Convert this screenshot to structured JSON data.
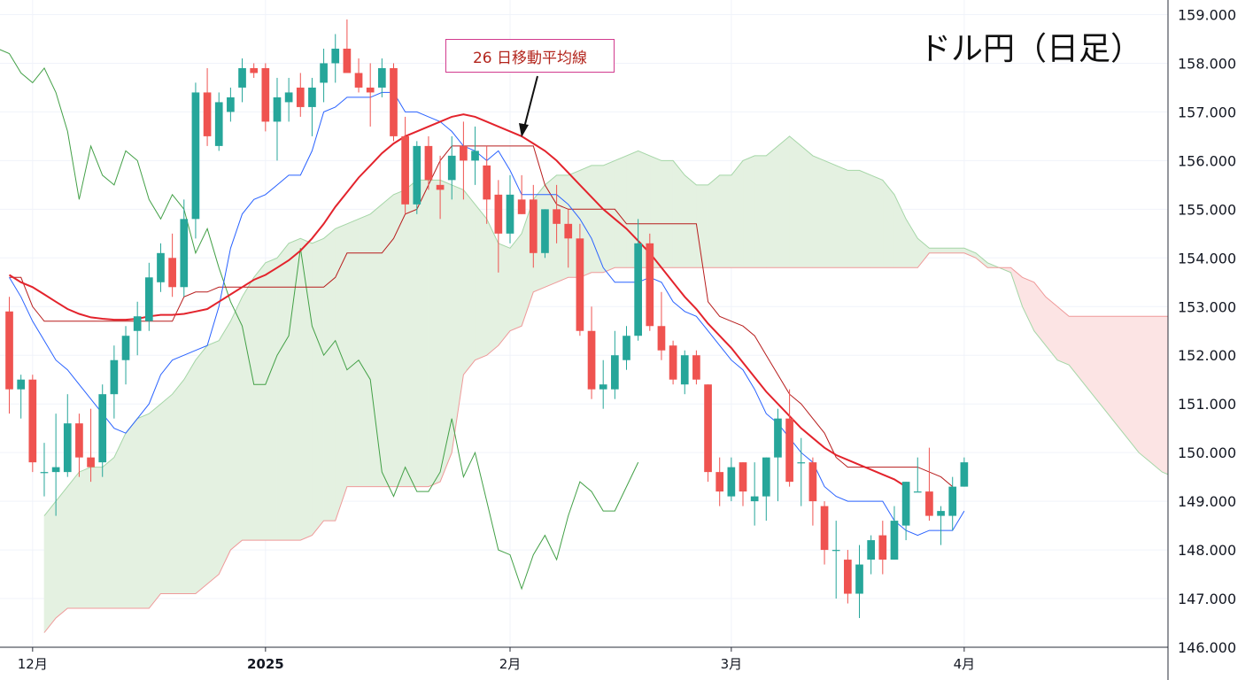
{
  "chart_data": {
    "type": "candlestick",
    "title": "ドル円（日足）",
    "annotation": "26 日移動平均線",
    "y_axis": {
      "ticks": [
        "146.000",
        "147.000",
        "148.000",
        "149.000",
        "150.000",
        "151.000",
        "152.000",
        "153.000",
        "154.000",
        "155.000",
        "156.000",
        "157.000",
        "158.000",
        "159.000"
      ],
      "ylim": [
        146,
        159.3
      ]
    },
    "x_axis": {
      "ticks": [
        {
          "label": "12月",
          "day": 2,
          "bold": false
        },
        {
          "label": "2025",
          "day": 22,
          "bold": true
        },
        {
          "label": "2月",
          "day": 43,
          "bold": false
        },
        {
          "label": "3月",
          "day": 62,
          "bold": false
        },
        {
          "label": "4月",
          "day": 82,
          "bold": false
        }
      ],
      "xlim": [
        -0.8,
        99.5
      ]
    },
    "colors": {
      "up": "#26a69a",
      "down": "#ef5350",
      "ma26": "#e3232c",
      "tenkan": "#2962ff",
      "kijun": "#b71c1c",
      "chikou": "#43a047",
      "kumo_bull": "#e4f1e1",
      "kumo_bear": "#fce4e4",
      "span_a": "#a5d6a7",
      "span_b": "#ef9a9a"
    },
    "candles": [
      [
        152.9,
        153.2,
        150.8,
        151.3
      ],
      [
        151.3,
        151.6,
        150.7,
        151.5
      ],
      [
        151.5,
        151.6,
        149.6,
        149.8
      ],
      [
        149.6,
        150.2,
        149.1,
        149.6
      ],
      [
        149.6,
        150.8,
        148.7,
        149.7
      ],
      [
        149.6,
        151.2,
        149.5,
        150.6
      ],
      [
        150.6,
        150.8,
        149.5,
        149.9
      ],
      [
        149.9,
        150.9,
        149.4,
        149.7
      ],
      [
        149.8,
        151.4,
        149.5,
        151.2
      ],
      [
        151.2,
        152.2,
        150.7,
        151.9
      ],
      [
        151.9,
        152.6,
        151.4,
        152.4
      ],
      [
        152.5,
        153.1,
        152.0,
        152.8
      ],
      [
        152.7,
        153.9,
        152.5,
        153.6
      ],
      [
        153.5,
        154.3,
        153.3,
        154.1
      ],
      [
        154.0,
        154.5,
        153.2,
        153.4
      ],
      [
        153.4,
        155.2,
        153.2,
        154.8
      ],
      [
        154.8,
        157.6,
        154.4,
        157.4
      ],
      [
        157.4,
        157.9,
        156.3,
        156.5
      ],
      [
        156.3,
        157.4,
        156.2,
        157.2
      ],
      [
        157.0,
        157.5,
        156.8,
        157.3
      ],
      [
        157.5,
        158.1,
        157.2,
        157.9
      ],
      [
        157.9,
        158.0,
        157.7,
        157.8
      ],
      [
        157.9,
        158.0,
        156.6,
        156.8
      ],
      [
        156.8,
        157.7,
        156.0,
        157.3
      ],
      [
        157.2,
        157.7,
        156.8,
        157.4
      ],
      [
        157.5,
        157.8,
        156.9,
        157.1
      ],
      [
        157.1,
        157.7,
        156.5,
        157.5
      ],
      [
        157.6,
        158.3,
        157.2,
        158.0
      ],
      [
        158.0,
        158.6,
        157.6,
        158.3
      ],
      [
        158.3,
        158.9,
        157.9,
        157.8
      ],
      [
        157.8,
        158.1,
        157.4,
        157.5
      ],
      [
        157.5,
        158.0,
        156.7,
        157.4
      ],
      [
        157.5,
        158.1,
        157.3,
        157.9
      ],
      [
        157.9,
        158.0,
        156.4,
        156.5
      ],
      [
        156.5,
        156.9,
        154.9,
        155.1
      ],
      [
        155.1,
        156.4,
        154.9,
        156.3
      ],
      [
        156.3,
        156.5,
        155.4,
        155.6
      ],
      [
        155.5,
        156.1,
        154.8,
        155.4
      ],
      [
        155.6,
        156.5,
        155.2,
        156.1
      ],
      [
        156.3,
        156.8,
        155.2,
        156.0
      ],
      [
        156.0,
        156.7,
        155.5,
        156.2
      ],
      [
        155.9,
        156.3,
        154.7,
        155.2
      ],
      [
        155.3,
        155.6,
        153.7,
        154.5
      ],
      [
        154.5,
        155.7,
        154.3,
        155.3
      ],
      [
        155.2,
        155.7,
        154.9,
        154.9
      ],
      [
        155.2,
        155.5,
        153.8,
        154.1
      ],
      [
        154.1,
        155.0,
        154.0,
        155.0
      ],
      [
        155.0,
        155.5,
        154.3,
        154.7
      ],
      [
        154.7,
        155.0,
        153.8,
        154.4
      ],
      [
        154.4,
        154.7,
        152.4,
        152.5
      ],
      [
        152.5,
        153.0,
        151.1,
        151.3
      ],
      [
        151.3,
        151.9,
        150.9,
        151.4
      ],
      [
        151.3,
        152.5,
        151.1,
        152.0
      ],
      [
        151.9,
        152.6,
        151.7,
        152.4
      ],
      [
        152.4,
        154.8,
        152.3,
        154.3
      ],
      [
        154.3,
        154.5,
        152.5,
        152.6
      ],
      [
        152.6,
        153.3,
        151.9,
        152.1
      ],
      [
        152.2,
        152.3,
        151.4,
        151.5
      ],
      [
        151.4,
        152.1,
        151.2,
        152.0
      ],
      [
        152.0,
        152.1,
        151.4,
        151.5
      ],
      [
        151.4,
        151.4,
        149.4,
        149.6
      ],
      [
        149.6,
        149.9,
        148.9,
        149.2
      ],
      [
        149.1,
        149.9,
        149.0,
        149.7
      ],
      [
        149.8,
        149.8,
        148.9,
        149.2
      ],
      [
        149.0,
        149.8,
        148.5,
        149.1
      ],
      [
        149.1,
        149.9,
        148.6,
        149.9
      ],
      [
        149.9,
        150.9,
        149.0,
        150.7
      ],
      [
        150.7,
        151.3,
        149.3,
        149.4
      ],
      [
        149.8,
        150.3,
        148.9,
        149.8
      ],
      [
        149.8,
        149.9,
        148.5,
        149.0
      ],
      [
        148.9,
        149.0,
        147.7,
        148.0
      ],
      [
        148.0,
        148.6,
        147.0,
        148.0
      ],
      [
        147.8,
        148.0,
        146.9,
        147.1
      ],
      [
        147.1,
        148.1,
        146.6,
        147.7
      ],
      [
        147.8,
        148.3,
        147.5,
        148.2
      ],
      [
        148.3,
        148.6,
        147.5,
        147.8
      ],
      [
        147.8,
        148.9,
        147.8,
        148.6
      ],
      [
        148.5,
        149.4,
        148.2,
        149.4
      ],
      [
        149.2,
        149.9,
        149.2,
        149.2
      ],
      [
        149.2,
        150.1,
        148.6,
        148.7
      ],
      [
        148.7,
        148.9,
        148.1,
        148.8
      ],
      [
        148.7,
        149.5,
        148.4,
        149.3
      ],
      [
        149.3,
        149.9,
        149.3,
        149.8
      ]
    ],
    "ma26": [
      153.65,
      153.5,
      153.4,
      153.25,
      153.1,
      152.95,
      152.85,
      152.78,
      152.75,
      152.73,
      152.73,
      152.75,
      152.8,
      152.83,
      152.83,
      152.85,
      152.9,
      152.95,
      153.1,
      153.25,
      153.4,
      153.55,
      153.65,
      153.8,
      153.95,
      154.15,
      154.4,
      154.7,
      155.05,
      155.35,
      155.65,
      155.9,
      156.15,
      156.35,
      156.5,
      156.6,
      156.7,
      156.8,
      156.9,
      156.95,
      156.9,
      156.8,
      156.7,
      156.6,
      156.5,
      156.35,
      156.2,
      156.0,
      155.75,
      155.5,
      155.25,
      155.0,
      154.8,
      154.6,
      154.35,
      154.1,
      153.8,
      153.5,
      153.2,
      152.95,
      152.65,
      152.4,
      152.15,
      151.85,
      151.55,
      151.25,
      151.0,
      150.75,
      150.5,
      150.3,
      150.1,
      149.95,
      149.85,
      149.75,
      149.65,
      149.55,
      149.45,
      149.3
    ],
    "tenkan": [
      153.6,
      153.2,
      152.7,
      152.3,
      151.9,
      151.7,
      151.4,
      151.1,
      150.8,
      150.5,
      150.4,
      150.7,
      151.0,
      151.6,
      151.9,
      152.0,
      152.1,
      152.2,
      153.0,
      154.2,
      154.9,
      155.2,
      155.3,
      155.5,
      155.7,
      155.7,
      156.2,
      157.0,
      157.1,
      157.3,
      157.3,
      157.3,
      157.4,
      157.4,
      157.0,
      157.0,
      156.9,
      156.8,
      156.6,
      156.3,
      156.2,
      156.0,
      156.2,
      155.8,
      155.3,
      155.3,
      155.3,
      155.3,
      155.1,
      154.8,
      154.4,
      153.8,
      153.5,
      153.5,
      153.5,
      153.6,
      153.5,
      153.1,
      152.9,
      152.8,
      152.5,
      152.2,
      151.9,
      151.7,
      151.3,
      150.8,
      150.6,
      150.3,
      150.0,
      149.8,
      149.3,
      149.1,
      149.0,
      149.0,
      149.0,
      149.0,
      148.6,
      148.4,
      148.3,
      148.4,
      148.4,
      148.4,
      148.8
    ],
    "kijun": [
      153.6,
      153.6,
      153.0,
      152.7,
      152.7,
      152.7,
      152.7,
      152.7,
      152.7,
      152.7,
      152.7,
      152.7,
      152.7,
      152.7,
      152.7,
      153.2,
      153.3,
      153.3,
      153.4,
      153.4,
      153.4,
      153.4,
      153.4,
      153.4,
      153.4,
      153.4,
      153.4,
      153.4,
      153.6,
      154.1,
      154.1,
      154.1,
      154.1,
      154.4,
      154.9,
      155.0,
      155.5,
      156.0,
      156.3,
      156.3,
      156.3,
      156.3,
      156.3,
      156.3,
      156.3,
      156.3,
      155.5,
      155.1,
      155.0,
      155.0,
      155.0,
      155.0,
      155.0,
      154.7,
      154.7,
      154.7,
      154.7,
      154.7,
      154.7,
      154.7,
      153.1,
      152.8,
      152.7,
      152.6,
      152.4,
      152.0,
      151.6,
      151.2,
      151.0,
      150.7,
      150.4,
      149.9,
      149.7,
      149.7,
      149.7,
      149.7,
      149.7,
      149.7,
      149.7,
      149.6,
      149.5,
      149.3
    ],
    "chikou": [
      157.9,
      158.3,
      158.2,
      157.8,
      157.6,
      157.9,
      157.4,
      156.6,
      155.2,
      156.3,
      155.7,
      155.5,
      156.2,
      156.0,
      155.2,
      154.8,
      155.3,
      155.0,
      154.1,
      154.6,
      153.8,
      153.1,
      152.6,
      151.4,
      151.4,
      152.0,
      152.4,
      154.2,
      152.6,
      152.0,
      152.3,
      151.7,
      151.9,
      151.5,
      149.6,
      149.1,
      149.7,
      149.2,
      149.2,
      149.6,
      150.7,
      149.5,
      150.0,
      149.0,
      148.0,
      147.9,
      147.2,
      147.9,
      148.3,
      147.8,
      148.7,
      149.4,
      149.2,
      148.8,
      148.8,
      149.3,
      149.8
    ],
    "span_a": [
      148.7,
      149.0,
      149.3,
      149.6,
      149.7,
      149.7,
      149.9,
      150.4,
      150.7,
      150.8,
      151.0,
      151.2,
      151.5,
      151.9,
      152.2,
      152.3,
      152.7,
      153.2,
      153.6,
      153.9,
      154.0,
      154.3,
      154.4,
      154.3,
      154.4,
      154.6,
      154.7,
      154.8,
      154.9,
      155.1,
      155.3,
      155.4,
      155.6,
      155.6,
      155.6,
      155.5,
      155.4,
      155.1,
      154.8,
      154.3,
      154.2,
      154.5,
      155.2,
      155.5,
      155.7,
      155.7,
      155.8,
      155.9,
      155.9,
      156.0,
      156.1,
      156.2,
      156.1,
      156.0,
      156.0,
      155.7,
      155.5,
      155.5,
      155.7,
      155.7,
      156.0,
      156.1,
      156.1,
      156.3,
      156.5,
      156.3,
      156.1,
      156.0,
      155.9,
      155.8,
      155.8,
      155.7,
      155.6,
      155.3,
      154.8,
      154.4,
      154.2,
      154.2,
      154.2,
      154.2,
      154.1,
      153.9,
      153.8,
      153.7,
      153.0,
      152.5,
      152.2,
      151.9,
      151.8,
      151.5,
      151.2,
      150.9,
      150.6,
      150.3,
      150.0,
      149.8,
      149.6,
      149.5,
      149.5,
      149.4,
      149.2
    ],
    "span_b": [
      146.3,
      146.6,
      146.8,
      146.8,
      146.8,
      146.8,
      146.8,
      146.8,
      146.8,
      146.8,
      147.1,
      147.1,
      147.1,
      147.1,
      147.3,
      147.5,
      148.0,
      148.2,
      148.2,
      148.2,
      148.2,
      148.2,
      148.2,
      148.3,
      148.6,
      148.6,
      149.3,
      149.3,
      149.3,
      149.3,
      149.3,
      149.3,
      149.3,
      149.3,
      149.4,
      150.0,
      151.6,
      151.9,
      152.0,
      152.2,
      152.5,
      152.6,
      153.3,
      153.4,
      153.5,
      153.6,
      153.6,
      153.7,
      153.7,
      153.8,
      153.8,
      153.8,
      153.8,
      153.8,
      153.8,
      153.8,
      153.8,
      153.8,
      153.8,
      153.8,
      153.8,
      153.8,
      153.8,
      153.8,
      153.8,
      153.8,
      153.8,
      153.8,
      153.8,
      153.8,
      153.8,
      153.8,
      153.8,
      153.8,
      153.8,
      153.8,
      154.1,
      154.1,
      154.1,
      154.1,
      154.0,
      153.8,
      153.8,
      153.8,
      153.6,
      153.5,
      153.2,
      153.0,
      152.8,
      152.8,
      152.8,
      152.8,
      152.8,
      152.8,
      152.8,
      152.8,
      152.8,
      152.8,
      152.8,
      152.8
    ]
  }
}
